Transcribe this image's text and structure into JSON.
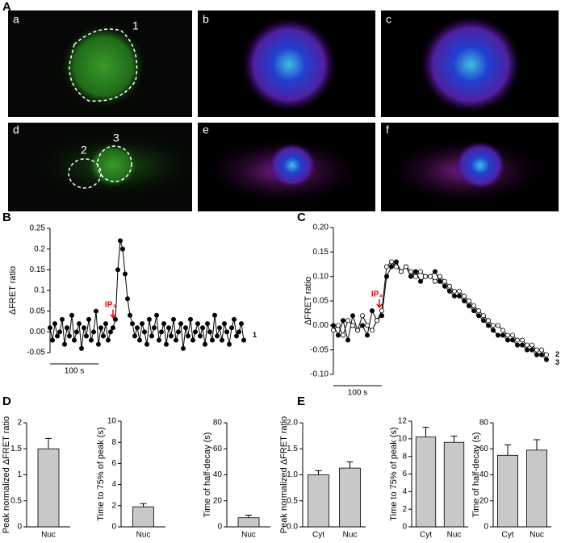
{
  "panel_labels": [
    "A",
    "B",
    "C",
    "D",
    "E"
  ],
  "image_panels": [
    "a",
    "b",
    "c",
    "d",
    "e",
    "f"
  ],
  "region_labels": [
    "1",
    "2",
    "3"
  ],
  "chart_data": [
    {
      "type": "line",
      "y_label": "ΔFRET ratio",
      "annotation": "IP₃",
      "annotation_x": 140,
      "scale_bar": {
        "length": 100,
        "label": "100 s"
      },
      "xlim": [
        0,
        405
      ],
      "ylim": [
        -0.05,
        0.25
      ],
      "yticks": [
        0.25,
        0.2,
        0.15,
        0.1,
        0.05,
        {
          "value": 0,
          "label": "0.00"
        },
        -0.05
      ],
      "x": [
        0,
        5,
        10,
        15,
        20,
        25,
        30,
        35,
        40,
        45,
        50,
        55,
        60,
        65,
        70,
        75,
        80,
        85,
        90,
        95,
        100,
        105,
        110,
        115,
        120,
        125,
        130,
        135,
        140,
        145,
        150,
        155,
        160,
        165,
        170,
        175,
        180,
        185,
        190,
        195,
        200,
        205,
        210,
        215,
        220,
        225,
        230,
        235,
        240,
        245,
        250,
        255,
        260,
        265,
        270,
        275,
        280,
        285,
        290,
        295,
        300,
        305,
        310,
        315,
        320,
        325,
        330,
        335,
        340,
        345,
        350,
        355,
        360,
        365,
        370,
        375,
        380,
        385,
        390,
        395,
        400
      ],
      "series": [
        {
          "name": "1",
          "color": "#000000",
          "marker_fill": "#000000",
          "values": [
            0.01,
            -0.02,
            0.02,
            -0.01,
            0.0,
            0.03,
            -0.03,
            0.01,
            -0.01,
            0.04,
            -0.02,
            0.0,
            0.02,
            -0.04,
            0.01,
            -0.01,
            0.03,
            -0.02,
            0.0,
            0.05,
            -0.03,
            0.01,
            -0.01,
            0.02,
            -0.02,
            0.0,
            0.01,
            0.03,
            0.15,
            0.22,
            0.2,
            0.14,
            0.08,
            0.04,
            0.02,
            -0.01,
            0.01,
            -0.02,
            0.02,
            0.0,
            -0.03,
            0.03,
            -0.01,
            0.01,
            0.04,
            -0.02,
            0.0,
            0.02,
            -0.03,
            0.01,
            -0.01,
            0.03,
            -0.02,
            0.0,
            0.02,
            -0.04,
            0.01,
            -0.01,
            0.03,
            -0.02,
            0.0,
            0.02,
            -0.01,
            0.01,
            -0.03,
            0.02,
            0.0,
            -0.02,
            0.04,
            -0.01,
            0.01,
            -0.02,
            0.02,
            0.0,
            -0.03,
            0.01,
            0.03,
            -0.01,
            0.0,
            0.02,
            -0.02
          ]
        }
      ]
    },
    {
      "type": "line",
      "y_label": "ΔFRET ratio",
      "annotation": "IP₃",
      "annotation_x": 105,
      "scale_bar": {
        "length": 100,
        "label": "100 s"
      },
      "xlim": [
        0,
        445
      ],
      "ylim": [
        -0.1,
        0.2
      ],
      "yticks": [
        {
          "value": 0.2,
          "label": "0.20"
        },
        0.15,
        {
          "value": 0.1,
          "label": "0.10"
        },
        0.05,
        {
          "value": 0,
          "label": "0.00"
        },
        -0.05,
        {
          "value": -0.1,
          "label": "-0.10"
        }
      ],
      "x": [
        0,
        10,
        20,
        30,
        40,
        50,
        60,
        70,
        80,
        90,
        100,
        110,
        120,
        130,
        140,
        150,
        160,
        170,
        180,
        190,
        200,
        210,
        220,
        230,
        240,
        250,
        260,
        270,
        280,
        290,
        300,
        310,
        320,
        330,
        340,
        350,
        360,
        370,
        380,
        390,
        400,
        410,
        420,
        430,
        440
      ],
      "series": [
        {
          "name": "2",
          "color": "#000000",
          "marker_fill": "#000000",
          "values": [
            0.0,
            -0.02,
            0.01,
            -0.03,
            0.02,
            -0.01,
            0.0,
            -0.02,
            0.03,
            0.01,
            0.02,
            0.1,
            0.12,
            0.13,
            0.11,
            0.12,
            0.1,
            0.11,
            0.09,
            0.1,
            0.1,
            0.11,
            0.09,
            0.08,
            0.07,
            0.06,
            0.06,
            0.05,
            0.04,
            0.03,
            0.02,
            0.01,
            0.0,
            -0.01,
            -0.02,
            -0.02,
            -0.03,
            -0.03,
            -0.04,
            -0.04,
            -0.05,
            -0.05,
            -0.06,
            -0.06,
            -0.07
          ]
        },
        {
          "name": "3",
          "color": "#000000",
          "marker_fill": "#ffffff",
          "values": [
            -0.01,
            0.0,
            -0.02,
            0.01,
            0.0,
            -0.01,
            0.02,
            0.0,
            -0.01,
            0.01,
            0.03,
            0.12,
            0.13,
            0.12,
            0.11,
            0.12,
            0.11,
            0.1,
            0.11,
            0.1,
            0.1,
            0.09,
            0.1,
            0.09,
            0.08,
            0.07,
            0.07,
            0.06,
            0.05,
            0.04,
            0.03,
            0.02,
            0.01,
            0.0,
            0.0,
            -0.01,
            -0.02,
            -0.02,
            -0.03,
            -0.03,
            -0.04,
            -0.04,
            -0.05,
            -0.05,
            -0.06
          ]
        }
      ]
    },
    {
      "type": "bar",
      "y_label": "Peak normalized ΔFRET ratio",
      "categories": [
        "Nuc"
      ],
      "ylim": [
        0,
        2
      ],
      "yticks": [
        0,
        0.5,
        1,
        1.5,
        2
      ],
      "series": [
        {
          "color": "#c8c8c8",
          "values": [
            1.5
          ],
          "errors": [
            0.2
          ]
        }
      ]
    },
    {
      "type": "bar",
      "y_label": "Time to 75% of peak (s)",
      "categories": [
        "Nuc"
      ],
      "ylim": [
        0,
        10
      ],
      "yticks": [
        0,
        2,
        4,
        6,
        8,
        10
      ],
      "series": [
        {
          "color": "#c8c8c8",
          "values": [
            1.9
          ],
          "errors": [
            0.3
          ]
        }
      ]
    },
    {
      "type": "bar",
      "y_label": "Time of half-decay (s)",
      "categories": [
        "Nuc"
      ],
      "ylim": [
        0,
        80
      ],
      "yticks": [
        0,
        20,
        40,
        60,
        80
      ],
      "series": [
        {
          "color": "#c8c8c8",
          "values": [
            7
          ],
          "errors": [
            2
          ]
        }
      ]
    },
    {
      "type": "bar",
      "y_label": "Peak normalized ΔFRET ratio",
      "categories": [
        "Cyt",
        "Nuc"
      ],
      "ylim": [
        0,
        2
      ],
      "yticks": [
        {
          "value": 0,
          "label": "0.0"
        },
        0.5,
        {
          "value": 1,
          "label": "1.0"
        },
        1.5,
        {
          "value": 2,
          "label": "2.0"
        }
      ],
      "series": [
        {
          "color": "#c8c8c8",
          "values": [
            1.0,
            1.13
          ],
          "errors": [
            0.08,
            0.12
          ]
        }
      ]
    },
    {
      "type": "bar",
      "y_label": "Time to 75% of peak (s)",
      "categories": [
        "Cyt",
        "Nuc"
      ],
      "ylim": [
        0,
        12
      ],
      "yticks": [
        0,
        2,
        4,
        6,
        8,
        10,
        12
      ],
      "series": [
        {
          "color": "#c8c8c8",
          "values": [
            10.2,
            9.6
          ],
          "errors": [
            1.1,
            0.7
          ]
        }
      ]
    },
    {
      "type": "bar",
      "y_label": "Time of half-decay (s)",
      "categories": [
        "Cyt",
        "Nuc"
      ],
      "ylim": [
        0,
        80
      ],
      "yticks": [
        0,
        20,
        40,
        60,
        80
      ],
      "series": [
        {
          "color": "#c8c8c8",
          "values": [
            55,
            59
          ],
          "errors": [
            8,
            8
          ]
        }
      ]
    }
  ]
}
